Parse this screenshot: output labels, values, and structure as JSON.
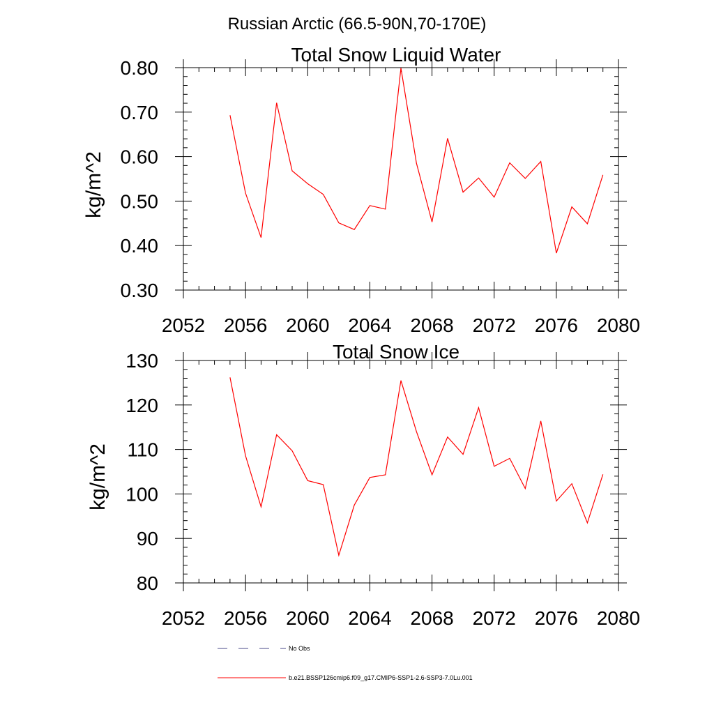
{
  "figure": {
    "title": "Russian Arctic (66.5-90N,70-170E)"
  },
  "legend": {
    "entries": [
      {
        "label": "No Obs",
        "style": "dashed",
        "color": "#4a4a8a"
      },
      {
        "label": "b.e21.BSSP126cmip6.f09_g17.CMIP6-SSP1-2.6-SSP3-7.0Lu.001",
        "style": "solid",
        "color": "#ff0000"
      }
    ]
  },
  "chart_data": [
    {
      "type": "line",
      "title": "Total Snow Liquid Water",
      "xlabel": "",
      "ylabel": "kg/m^2",
      "xlim": [
        2052,
        2080
      ],
      "ylim": [
        0.3,
        0.8
      ],
      "xticks": [
        "2052",
        "2056",
        "2060",
        "2064",
        "2068",
        "2072",
        "2076",
        "2080"
      ],
      "xtick_values": [
        2052,
        2056,
        2060,
        2064,
        2068,
        2072,
        2076,
        2080
      ],
      "yticks": [
        "0.30",
        "0.40",
        "0.50",
        "0.60",
        "0.70",
        "0.80"
      ],
      "ytick_values": [
        0.3,
        0.4,
        0.5,
        0.6,
        0.7,
        0.8
      ],
      "grid": false,
      "series": [
        {
          "name": "b.e21.BSSP126cmip6.f09_g17.CMIP6-SSP1-2.6-SSP3-7.0Lu.001",
          "color": "#ff0000",
          "x": [
            2055,
            2056,
            2057,
            2058,
            2059,
            2060,
            2061,
            2062,
            2063,
            2064,
            2065,
            2066,
            2067,
            2068,
            2069,
            2070,
            2071,
            2072,
            2073,
            2074,
            2075,
            2076,
            2077,
            2078,
            2079
          ],
          "values": [
            0.693,
            0.518,
            0.418,
            0.721,
            0.568,
            0.539,
            0.515,
            0.451,
            0.436,
            0.49,
            0.482,
            0.799,
            0.585,
            0.453,
            0.641,
            0.52,
            0.552,
            0.509,
            0.586,
            0.551,
            0.589,
            0.383,
            0.487,
            0.449,
            0.559
          ]
        }
      ]
    },
    {
      "type": "line",
      "title": "Total Snow Ice",
      "xlabel": "",
      "ylabel": "kg/m^2",
      "xlim": [
        2052,
        2080
      ],
      "ylim": [
        80,
        130
      ],
      "xticks": [
        "2052",
        "2056",
        "2060",
        "2064",
        "2068",
        "2072",
        "2076",
        "2080"
      ],
      "xtick_values": [
        2052,
        2056,
        2060,
        2064,
        2068,
        2072,
        2076,
        2080
      ],
      "yticks": [
        "80",
        "90",
        "100",
        "110",
        "120",
        "130"
      ],
      "ytick_values": [
        80,
        90,
        100,
        110,
        120,
        130
      ],
      "grid": false,
      "series": [
        {
          "name": "b.e21.BSSP126cmip6.f09_g17.CMIP6-SSP1-2.6-SSP3-7.0Lu.001",
          "color": "#ff0000",
          "x": [
            2055,
            2056,
            2057,
            2058,
            2059,
            2060,
            2061,
            2062,
            2063,
            2064,
            2065,
            2066,
            2067,
            2068,
            2069,
            2070,
            2071,
            2072,
            2073,
            2074,
            2075,
            2076,
            2077,
            2078,
            2079
          ],
          "values": [
            126.2,
            108.6,
            97.1,
            113.3,
            109.7,
            103.0,
            102.1,
            86.2,
            97.5,
            103.7,
            104.3,
            125.5,
            114.0,
            104.3,
            112.8,
            108.9,
            119.4,
            106.2,
            108.0,
            101.2,
            116.4,
            98.4,
            102.3,
            93.5,
            104.4
          ]
        }
      ]
    }
  ]
}
